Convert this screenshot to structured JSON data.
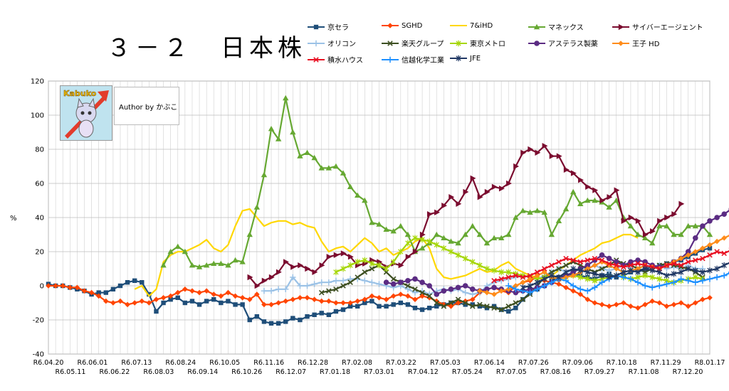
{
  "title": "３－２　日本株",
  "author": "Author by かぶこ",
  "logo_text": "Kabuko",
  "chart_data": {
    "type": "line",
    "ylabel": "%",
    "ylim": [
      -40,
      120
    ],
    "yticks": [
      -40,
      -20,
      0,
      20,
      40,
      60,
      80,
      100,
      120
    ],
    "grid": true,
    "legend_position": "top-right",
    "x_labels_top": [
      "R6.04.20",
      "R6.06.01",
      "R6.07.13",
      "R6.08.24",
      "R6.10.05",
      "R6.11.16",
      "R6.12.28",
      "R7.02.08",
      "R7.03.22",
      "R7.05.03",
      "R7.06.14",
      "R7.07.26",
      "R7.09.06",
      "R7.10.18",
      "R7.11.29",
      "R8.01.17"
    ],
    "x_labels_bottom": [
      "R6.05.11",
      "R6.06.22",
      "R6.08.03",
      "R6.09.14",
      "R6.10.26",
      "R6.12.07",
      "R7.01.18",
      "R7.03.01",
      "R7.04.12",
      "R7.05.24",
      "R7.07.05",
      "R7.08.16",
      "R7.09.27",
      "R7.11.08",
      "R7.12.20"
    ],
    "n_points": 93,
    "series": [
      {
        "name": "京セラ",
        "color": "#1f4e79",
        "marker": "square",
        "start": 0,
        "values": [
          1,
          0,
          0,
          -1,
          -2,
          -3,
          -5,
          -4,
          -4,
          -2,
          0,
          2,
          3,
          2,
          -5,
          -15,
          -10,
          -8,
          -7,
          -10,
          -9,
          -11,
          -9,
          -8,
          -10,
          -9,
          -11,
          -11,
          -20,
          -18,
          -21,
          -22,
          -22,
          -21,
          -19,
          -20,
          -18,
          -17,
          -16,
          -17,
          -15,
          -14,
          -12,
          -12,
          -10,
          -9,
          -12,
          -12,
          -11,
          -10,
          -11,
          -13,
          -14,
          -13,
          -12,
          -11,
          -10,
          -10,
          -11,
          -11,
          -12,
          -13,
          -12,
          -14,
          -15,
          -13,
          -8,
          -4,
          -2,
          0,
          3,
          5,
          6,
          7,
          6,
          5,
          4,
          6,
          7,
          5,
          6,
          8,
          9,
          10,
          11,
          12,
          13,
          14,
          15,
          17,
          19,
          21,
          22
        ]
      },
      {
        "name": "SGHD",
        "color": "#ff4500",
        "marker": "diamond",
        "start": 0,
        "values": [
          0,
          0,
          0,
          -1,
          -1,
          -3,
          -4,
          -6,
          -9,
          -10,
          -9,
          -11,
          -10,
          -9,
          -10,
          -8,
          -7,
          -6,
          -4,
          -2,
          -3,
          -4,
          -3,
          -5,
          -6,
          -4,
          -6,
          -7,
          -8,
          -5,
          -11,
          -11,
          -10,
          -9,
          -8,
          -7,
          -7,
          -8,
          -9,
          -9,
          -10,
          -10,
          -10,
          -9,
          -8,
          -6,
          -7,
          -8,
          -6,
          -5,
          -6,
          -8,
          -6,
          -7,
          -9,
          -11,
          -12,
          -10,
          -9,
          -8,
          -4,
          -2,
          -1,
          -3,
          -4,
          0,
          2,
          3,
          5,
          3,
          2,
          1,
          -1,
          -3,
          -5,
          -8,
          -10,
          -11,
          -12,
          -11,
          -10,
          -12,
          -13,
          -11,
          -9,
          -10,
          -12,
          -11,
          -10,
          -12,
          -10,
          -8,
          -7
        ]
      },
      {
        "name": "7&iHD",
        "color": "#ffd700",
        "marker": "none",
        "start": 12,
        "values": [
          -2,
          0,
          -6,
          -2,
          14,
          18,
          20,
          20,
          22,
          24,
          27,
          22,
          20,
          24,
          35,
          44,
          45,
          40,
          35,
          37,
          38,
          38,
          36,
          37,
          35,
          34,
          26,
          20,
          22,
          23,
          20,
          24,
          28,
          25,
          20,
          22,
          18,
          20,
          22,
          26,
          28,
          22,
          10,
          5,
          4,
          5,
          6,
          8,
          10,
          8,
          9,
          12,
          14,
          10,
          8,
          6,
          5,
          4,
          6,
          9,
          12,
          15,
          18,
          20,
          22,
          25,
          26,
          28,
          30,
          30,
          28
        ]
      },
      {
        "name": "マネックス",
        "color": "#66a832",
        "marker": "triangle",
        "start": 16,
        "values": [
          12,
          20,
          23,
          20,
          12,
          11,
          12,
          13,
          13,
          12,
          15,
          14,
          30,
          46,
          65,
          92,
          86,
          110,
          90,
          76,
          78,
          75,
          69,
          69,
          70,
          66,
          58,
          53,
          50,
          37,
          36,
          33,
          32,
          35,
          30,
          20,
          22,
          25,
          30,
          28,
          26,
          25,
          30,
          35,
          30,
          25,
          28,
          28,
          30,
          40,
          44,
          43,
          44,
          43,
          30,
          38,
          45,
          55,
          48,
          50,
          50,
          49,
          46,
          50,
          40,
          35,
          30,
          28,
          25,
          35,
          35,
          30,
          30,
          35,
          35,
          35,
          30
        ]
      },
      {
        "name": "サイバーエージェント",
        "color": "#7b0c2f",
        "marker": "arrow",
        "start": 28,
        "values": [
          5,
          0,
          3,
          5,
          8,
          14,
          11,
          12,
          10,
          8,
          12,
          17,
          18,
          19,
          17,
          12,
          13,
          15,
          14,
          11,
          13,
          12,
          17,
          20,
          30,
          42,
          43,
          47,
          52,
          48,
          55,
          63,
          52,
          55,
          58,
          57,
          60,
          70,
          78,
          80,
          78,
          82,
          76,
          76,
          68,
          66,
          62,
          58,
          56,
          50,
          52,
          56,
          38,
          40,
          38,
          30,
          32,
          38,
          40,
          42,
          48
        ]
      },
      {
        "name": "オリコン",
        "color": "#9bc2e6",
        "marker": "plus",
        "start": 30,
        "values": [
          -3,
          -3,
          -2,
          -2,
          5,
          0,
          0,
          1,
          2,
          2,
          3,
          3,
          4,
          4,
          3,
          2,
          1,
          0,
          -1,
          0,
          -2,
          -4,
          -3,
          -5,
          -3,
          -2,
          -3,
          -2,
          -4,
          -5,
          -4,
          0,
          2,
          3,
          4,
          5,
          6,
          5,
          4,
          6,
          8,
          10,
          8,
          9,
          10,
          10,
          12,
          10,
          9,
          10,
          12,
          10,
          9,
          8,
          10,
          12,
          10,
          11,
          10,
          12,
          10,
          10
        ]
      },
      {
        "name": "楽天グループ",
        "color": "#3d4f21",
        "marker": "x",
        "start": 38,
        "values": [
          -4,
          -3,
          -2,
          0,
          2,
          5,
          8,
          10,
          12,
          8,
          4,
          2,
          0,
          -2,
          -4,
          -6,
          -10,
          -12,
          -10,
          -8,
          -10,
          -12,
          -11,
          -12,
          -13,
          -14,
          -12,
          -10,
          -8,
          -5,
          0,
          5,
          8,
          10,
          12,
          14,
          12,
          10,
          8,
          10,
          12,
          15,
          13,
          12,
          10,
          8,
          10,
          12,
          13,
          12,
          11,
          10,
          8,
          5
        ]
      },
      {
        "name": "東京メトロ",
        "color": "#a6d609",
        "marker": "star",
        "start": 40,
        "values": [
          8,
          10,
          12,
          14,
          15,
          13,
          12,
          10,
          14,
          20,
          25,
          28,
          27,
          26,
          24,
          22,
          20,
          18,
          16,
          14,
          12,
          10,
          9,
          8,
          8,
          7,
          6,
          5,
          4,
          5,
          6,
          4,
          5,
          6,
          5,
          4,
          3,
          4,
          5,
          6,
          5,
          4,
          5,
          6,
          5,
          4,
          3,
          2,
          3,
          4,
          5,
          4
        ]
      },
      {
        "name": "アステラス製薬",
        "color": "#5b2c83",
        "marker": "circle",
        "start": 47,
        "values": [
          2,
          1,
          2,
          3,
          4,
          2,
          0,
          -5,
          -3,
          -2,
          -1,
          0,
          -2,
          -3,
          -2,
          -1,
          -2,
          -3,
          -4,
          -3,
          -2,
          -1,
          0,
          2,
          4,
          6,
          8,
          10,
          12,
          15,
          18,
          16,
          14,
          12,
          14,
          15,
          14,
          12,
          11,
          12,
          14,
          16,
          20,
          28,
          35,
          38,
          40,
          42,
          45,
          47,
          48,
          56,
          58,
          58
        ]
      },
      {
        "name": "王子 HD",
        "color": "#ff8c1a",
        "marker": "diamond",
        "start": 60,
        "values": [
          -3,
          -4,
          -5,
          -3,
          -2,
          0,
          2,
          4,
          6,
          8,
          5,
          4,
          5,
          6,
          8,
          10,
          12,
          14,
          12,
          10,
          8,
          9,
          10,
          12,
          11,
          10,
          12,
          14,
          16,
          18,
          20,
          22,
          24,
          26,
          28,
          30,
          30,
          29,
          30
        ]
      },
      {
        "name": "積水ハウス",
        "color": "#e81123",
        "marker": "x",
        "start": 62,
        "values": [
          3,
          4,
          5,
          6,
          5,
          6,
          8,
          10,
          12,
          14,
          16,
          15,
          14,
          15,
          16,
          15,
          13,
          12,
          11,
          12,
          13,
          12,
          11,
          10,
          12,
          13,
          12,
          14,
          15,
          16,
          18,
          20,
          19,
          21,
          20,
          18
        ]
      },
      {
        "name": "信越化学工業",
        "color": "#1e90ff",
        "marker": "plus",
        "start": 64,
        "values": [
          0,
          -2,
          -3,
          -4,
          -2,
          0,
          2,
          4,
          3,
          0,
          -2,
          -3,
          -1,
          2,
          4,
          6,
          5,
          4,
          2,
          0,
          -1,
          0,
          1,
          2,
          4,
          3,
          2,
          3,
          4,
          5,
          6,
          8,
          10,
          15,
          20,
          24,
          25
        ]
      },
      {
        "name": "JFE",
        "color": "#203864",
        "marker": "star",
        "start": 66,
        "values": [
          -1,
          0,
          2,
          4,
          6,
          5,
          8,
          10,
          9,
          8,
          7,
          6,
          5,
          6,
          8,
          9,
          8,
          10,
          9,
          8,
          6,
          7,
          8,
          10,
          9,
          8,
          9,
          10,
          12,
          14,
          15,
          14,
          13,
          12,
          14
        ]
      }
    ]
  }
}
